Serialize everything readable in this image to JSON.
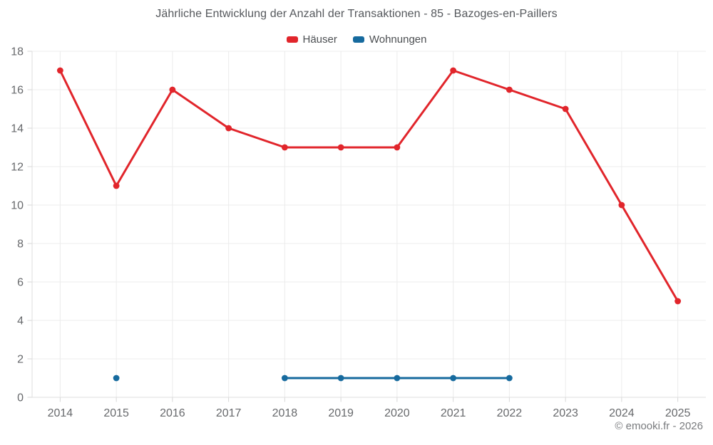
{
  "header": {
    "title": "Jährliche Entwicklung der Anzahl der Transaktionen - 85 - Bazoges-en-Paillers"
  },
  "legend": {
    "items": [
      {
        "label": "Häuser",
        "color": "#e1252b"
      },
      {
        "label": "Wohnungen",
        "color": "#166a9e"
      }
    ]
  },
  "footer": {
    "credit": "© emooki.fr - 2026"
  },
  "colors": {
    "grid": "#ececec",
    "border": "#dedede",
    "tick": "#d7d7d7",
    "tick_label": "#67696c"
  },
  "chart_data": {
    "type": "line",
    "title": "Jährliche Entwicklung der Anzahl der Transaktionen - 85 - Bazoges-en-Paillers",
    "categories": [
      "2014",
      "2015",
      "2016",
      "2017",
      "2018",
      "2019",
      "2020",
      "2021",
      "2022",
      "2023",
      "2024",
      "2025"
    ],
    "series": [
      {
        "name": "Häuser",
        "color": "#e1252b",
        "values": [
          17,
          11,
          16,
          14,
          13,
          13,
          13,
          17,
          16,
          15,
          10,
          5
        ]
      },
      {
        "name": "Wohnungen",
        "color": "#166a9e",
        "values": [
          null,
          1,
          null,
          null,
          1,
          1,
          1,
          1,
          1,
          null,
          null,
          null
        ]
      }
    ],
    "xlabel": "",
    "ylabel": "",
    "ylim": [
      0,
      18
    ],
    "ytick_step": 2,
    "grid": true,
    "legend_position": "top",
    "marker": "circle"
  }
}
